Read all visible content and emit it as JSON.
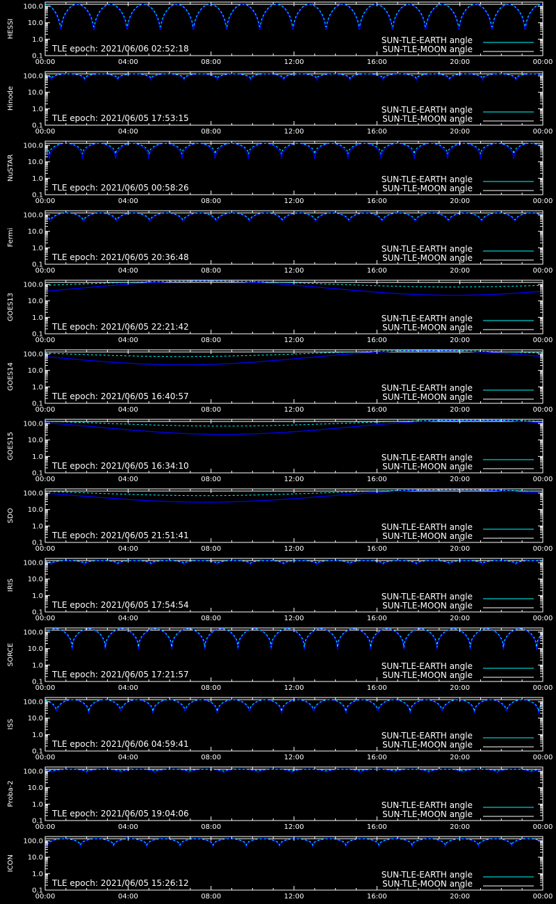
{
  "colors": {
    "background": "#000000",
    "axis": "#ffffff",
    "earth_series": "#00ffff",
    "moon_series": "#0000ff",
    "moon_legend_line": "#ffffff",
    "reference_line": "#ffffff"
  },
  "legend": {
    "earth_label": "SUN-TLE-EARTH angle",
    "moon_label": "SUN-TLE-MOON angle"
  },
  "chart_data": [
    {
      "type": "line",
      "panel_label": "HESSI",
      "tle_epoch": "TLE epoch: 2021/06/06 02:52:18",
      "x_tick_labels": [
        "00:00",
        "04:00",
        "08:00",
        "12:00",
        "16:00",
        "20:00",
        "00:00"
      ],
      "y_tick_labels": [
        "100.0",
        "10.0",
        "1.0",
        "0.1"
      ],
      "yscale": "log",
      "ylim": [
        0.1,
        180
      ],
      "reference_line": 133,
      "series": [
        {
          "role": "earth",
          "shape": "periodic",
          "min": 2.5,
          "max": 133,
          "period_hours": 1.6,
          "phase_hours": 0.75
        },
        {
          "role": "moon",
          "shape": "periodic",
          "min": 1.5,
          "max": 133,
          "period_hours": 1.6,
          "phase_hours": 0.75
        }
      ]
    },
    {
      "type": "line",
      "panel_label": "Hinode",
      "tle_epoch": "TLE epoch: 2021/06/05 17:53:15",
      "x_tick_labels": [
        "00:00",
        "04:00",
        "08:00",
        "12:00",
        "16:00",
        "20:00",
        "00:00"
      ],
      "y_tick_labels": [
        "100.0",
        "10.0",
        "1.0",
        "0.1"
      ],
      "yscale": "log",
      "ylim": [
        0.1,
        180
      ],
      "reference_line": 133,
      "series": [
        {
          "role": "earth",
          "shape": "periodic",
          "min": 70,
          "max": 133,
          "period_hours": 1.6,
          "phase_hours": 0.3
        },
        {
          "role": "moon",
          "shape": "periodic",
          "min": 55,
          "max": 133,
          "period_hours": 1.6,
          "phase_hours": 0.3
        }
      ]
    },
    {
      "type": "line",
      "panel_label": "NuSTAR",
      "tle_epoch": "TLE epoch: 2021/06/05 00:58:26",
      "x_tick_labels": [
        "00:00",
        "04:00",
        "08:00",
        "12:00",
        "16:00",
        "20:00",
        "00:00"
      ],
      "y_tick_labels": [
        "100.0",
        "10.0",
        "1.0",
        "0.1"
      ],
      "yscale": "log",
      "ylim": [
        0.1,
        180
      ],
      "reference_line": 133,
      "series": [
        {
          "role": "earth",
          "shape": "periodic",
          "min": 30,
          "max": 133,
          "period_hours": 1.6,
          "phase_hours": 0.2
        },
        {
          "role": "moon",
          "shape": "periodic",
          "min": 15,
          "max": 133,
          "period_hours": 1.6,
          "phase_hours": 0.2
        }
      ]
    },
    {
      "type": "line",
      "panel_label": "Fermi",
      "tle_epoch": "TLE epoch: 2021/06/05 20:36:48",
      "x_tick_labels": [
        "00:00",
        "04:00",
        "08:00",
        "12:00",
        "16:00",
        "20:00",
        "00:00"
      ],
      "y_tick_labels": [
        "100.0",
        "10.0",
        "1.0",
        "0.1"
      ],
      "yscale": "log",
      "ylim": [
        0.1,
        180
      ],
      "reference_line": 133,
      "series": [
        {
          "role": "earth",
          "shape": "periodic",
          "min": 40,
          "max": 133,
          "period_hours": 1.6,
          "phase_hours": 0.25
        },
        {
          "role": "moon",
          "shape": "periodic",
          "min": 30,
          "max": 133,
          "period_hours": 1.6,
          "phase_hours": 0.25
        }
      ]
    },
    {
      "type": "line",
      "panel_label": "GOES13",
      "tle_epoch": "TLE epoch: 2021/06/05 22:21:42",
      "x_tick_labels": [
        "00:00",
        "04:00",
        "08:00",
        "12:00",
        "16:00",
        "20:00",
        "00:00"
      ],
      "y_tick_labels": [
        "100.0",
        "10.0",
        "1.0",
        "0.1"
      ],
      "yscale": "log",
      "ylim": [
        0.1,
        180
      ],
      "reference_line": 133,
      "series": [
        {
          "role": "earth",
          "shape": "slow",
          "min": 70,
          "max": 160,
          "min_hour": 19.7
        },
        {
          "role": "moon",
          "shape": "slow",
          "min": 22,
          "max": 160,
          "min_hour": 19.7
        }
      ]
    },
    {
      "type": "line",
      "panel_label": "GOES14",
      "tle_epoch": "TLE epoch: 2021/06/05 16:40:57",
      "x_tick_labels": [
        "00:00",
        "04:00",
        "08:00",
        "12:00",
        "16:00",
        "20:00",
        "00:00"
      ],
      "y_tick_labels": [
        "100.0",
        "10.0",
        "1.0",
        "0.1"
      ],
      "yscale": "log",
      "ylim": [
        0.1,
        180
      ],
      "reference_line": 133,
      "series": [
        {
          "role": "earth",
          "shape": "slow",
          "min": 70,
          "max": 160,
          "min_hour": 6.6
        },
        {
          "role": "moon",
          "shape": "slow",
          "min": 22,
          "max": 160,
          "min_hour": 6.6
        }
      ]
    },
    {
      "type": "line",
      "panel_label": "GOES15",
      "tle_epoch": "TLE epoch: 2021/06/05 16:34:10",
      "x_tick_labels": [
        "00:00",
        "04:00",
        "08:00",
        "12:00",
        "16:00",
        "20:00",
        "00:00"
      ],
      "y_tick_labels": [
        "100.0",
        "10.0",
        "1.0",
        "0.1"
      ],
      "yscale": "log",
      "ylim": [
        0.1,
        180
      ],
      "reference_line": 133,
      "series": [
        {
          "role": "earth",
          "shape": "slow",
          "min": 70,
          "max": 160,
          "min_hour": 8.6
        },
        {
          "role": "moon",
          "shape": "slow",
          "min": 22,
          "max": 160,
          "min_hour": 8.6
        }
      ]
    },
    {
      "type": "line",
      "panel_label": "SDO",
      "tle_epoch": "TLE epoch: 2021/06/05 21:51:41",
      "x_tick_labels": [
        "00:00",
        "04:00",
        "08:00",
        "12:00",
        "16:00",
        "20:00",
        "00:00"
      ],
      "y_tick_labels": [
        "100.0",
        "10.0",
        "1.0",
        "0.1"
      ],
      "yscale": "log",
      "ylim": [
        0.1,
        180
      ],
      "reference_line": 133,
      "series": [
        {
          "role": "earth",
          "shape": "slow",
          "min": 70,
          "max": 160,
          "min_hour": 7.7
        },
        {
          "role": "moon",
          "shape": "slow",
          "min": 28,
          "max": 160,
          "min_hour": 7.7
        }
      ]
    },
    {
      "type": "line",
      "panel_label": "IRIS",
      "tle_epoch": "TLE epoch: 2021/06/05 17:54:54",
      "x_tick_labels": [
        "00:00",
        "04:00",
        "08:00",
        "12:00",
        "16:00",
        "20:00",
        "00:00"
      ],
      "y_tick_labels": [
        "100.0",
        "10.0",
        "1.0",
        "0.1"
      ],
      "yscale": "log",
      "ylim": [
        0.1,
        180
      ],
      "reference_line": 133,
      "series": [
        {
          "role": "earth",
          "shape": "periodic",
          "min": 90,
          "max": 133,
          "period_hours": 1.6,
          "phase_hours": 0.3
        },
        {
          "role": "moon",
          "shape": "periodic",
          "min": 75,
          "max": 133,
          "period_hours": 1.6,
          "phase_hours": 0.3
        }
      ]
    },
    {
      "type": "line",
      "panel_label": "SORCE",
      "tle_epoch": "TLE epoch: 2021/06/05 17:21:57",
      "x_tick_labels": [
        "00:00",
        "04:00",
        "08:00",
        "12:00",
        "16:00",
        "20:00",
        "00:00"
      ],
      "y_tick_labels": [
        "100.0",
        "10.0",
        "1.0",
        "0.1"
      ],
      "yscale": "log",
      "ylim": [
        0.1,
        180
      ],
      "reference_line": 133,
      "series": [
        {
          "role": "earth",
          "shape": "periodic",
          "min": 12,
          "max": 160,
          "period_hours": 1.6,
          "phase_hours": 1.3
        },
        {
          "role": "moon",
          "shape": "periodic",
          "min": 8,
          "max": 160,
          "period_hours": 1.6,
          "phase_hours": 1.3
        }
      ]
    },
    {
      "type": "line",
      "panel_label": "ISS",
      "tle_epoch": "TLE epoch: 2021/06/06 04:59:41",
      "x_tick_labels": [
        "00:00",
        "04:00",
        "08:00",
        "12:00",
        "16:00",
        "20:00",
        "00:00"
      ],
      "y_tick_labels": [
        "100.0",
        "10.0",
        "1.0",
        "0.1"
      ],
      "yscale": "log",
      "ylim": [
        0.1,
        180
      ],
      "reference_line": 133,
      "series": [
        {
          "role": "earth",
          "shape": "periodic",
          "min": 25,
          "max": 133,
          "period_hours": 1.55,
          "phase_hours": 0.55
        },
        {
          "role": "moon",
          "shape": "periodic",
          "min": 18,
          "max": 133,
          "period_hours": 1.55,
          "phase_hours": 0.55
        }
      ]
    },
    {
      "type": "line",
      "panel_label": "Proba-2",
      "tle_epoch": "TLE epoch: 2021/06/05 19:04:06",
      "x_tick_labels": [
        "00:00",
        "04:00",
        "08:00",
        "12:00",
        "16:00",
        "20:00",
        "00:00"
      ],
      "y_tick_labels": [
        "100.0",
        "10.0",
        "1.0",
        "0.1"
      ],
      "yscale": "log",
      "ylim": [
        0.1,
        180
      ],
      "reference_line": 133,
      "series": [
        {
          "role": "earth",
          "shape": "periodic",
          "min": 100,
          "max": 133,
          "period_hours": 1.65,
          "phase_hours": 0.35
        },
        {
          "role": "moon",
          "shape": "periodic",
          "min": 78,
          "max": 133,
          "period_hours": 1.65,
          "phase_hours": 0.35
        }
      ]
    },
    {
      "type": "line",
      "panel_label": "ICON",
      "tle_epoch": "TLE epoch: 2021/06/05 15:26:12",
      "x_tick_labels": [
        "00:00",
        "04:00",
        "08:00",
        "12:00",
        "16:00",
        "20:00",
        "00:00"
      ],
      "y_tick_labels": [
        "100.0",
        "10.0",
        "1.0",
        "0.1"
      ],
      "yscale": "log",
      "ylim": [
        0.1,
        180
      ],
      "reference_line": 133,
      "series": [
        {
          "role": "earth",
          "shape": "periodic",
          "min": 55,
          "max": 133,
          "period_hours": 1.6,
          "phase_hours": 0.1
        },
        {
          "role": "moon",
          "shape": "periodic",
          "min": 45,
          "max": 133,
          "period_hours": 1.6,
          "phase_hours": 0.1
        }
      ]
    }
  ]
}
